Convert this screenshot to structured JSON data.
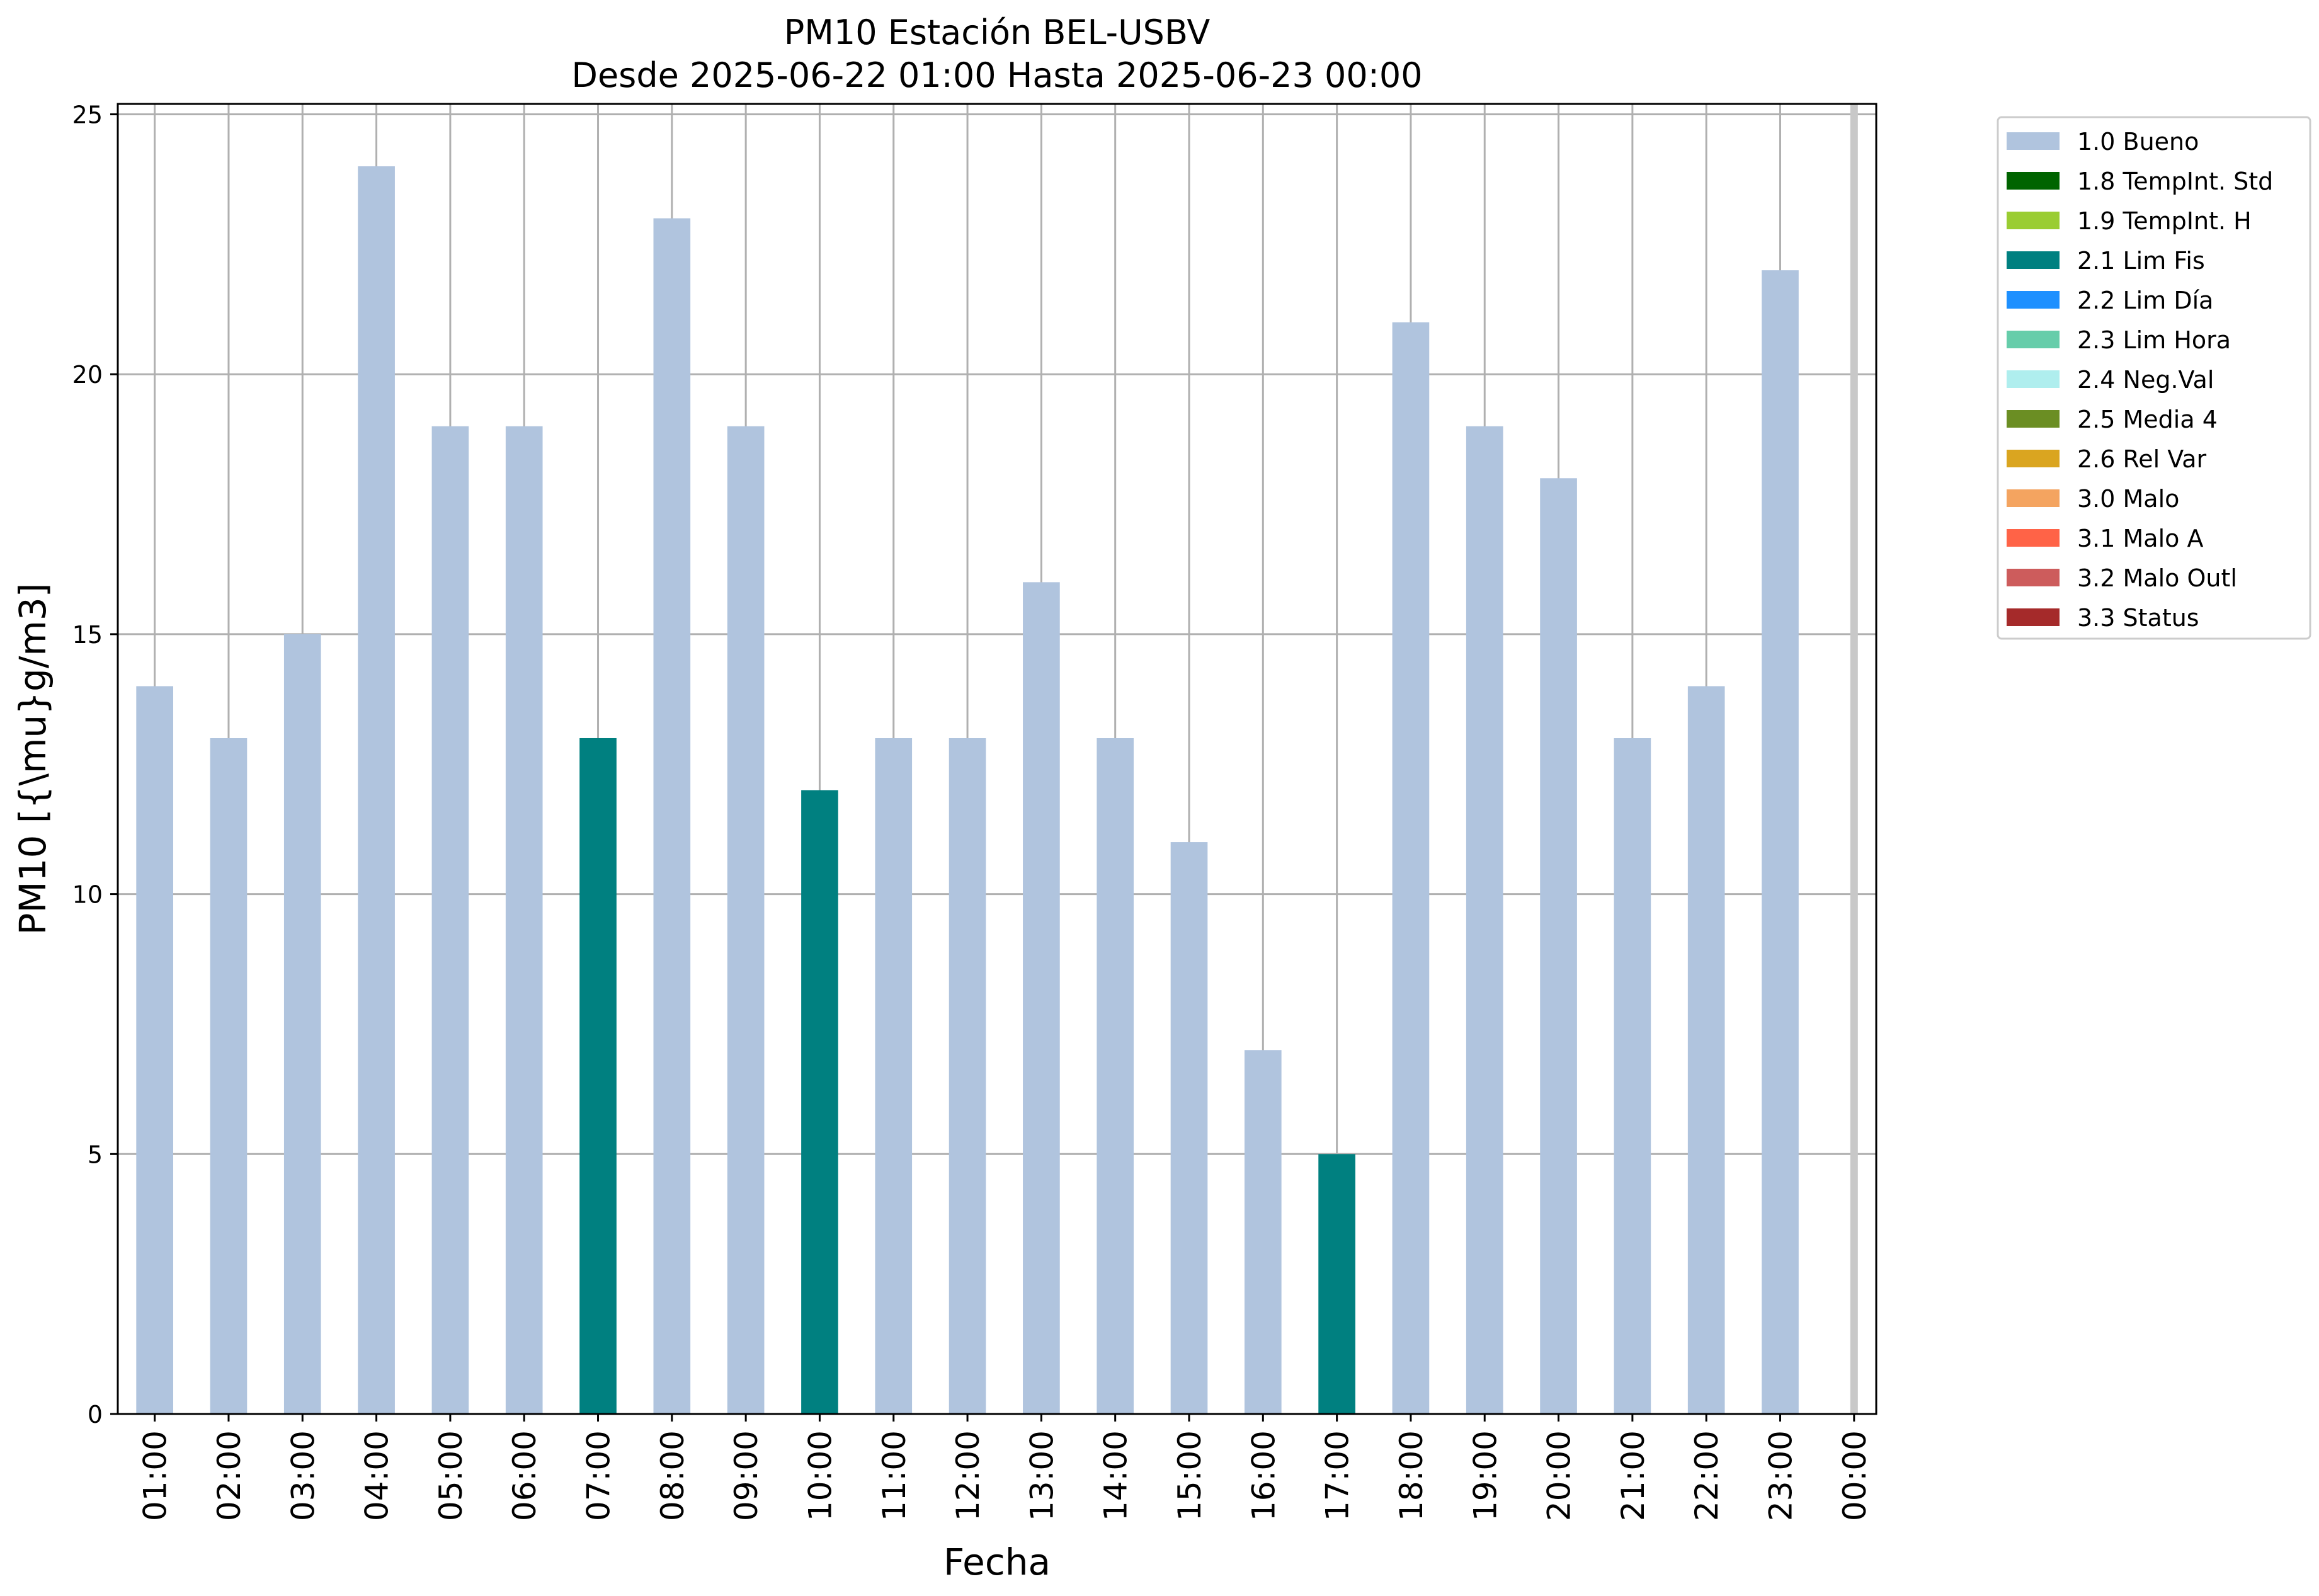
{
  "chart_data": {
    "type": "bar",
    "title": "PM10 Estación BEL-USBV",
    "subtitle": "Desde 2025-06-22 01:00 Hasta 2025-06-23 00:00",
    "xlabel": "Fecha",
    "ylabel": "PM10 [{\\mu}g/m3]",
    "ylim": [
      0,
      25.2
    ],
    "yticks": [
      0,
      5,
      10,
      15,
      20,
      25
    ],
    "grid": true,
    "legend_position": "outside-right",
    "categories": [
      "01:00",
      "02:00",
      "03:00",
      "04:00",
      "05:00",
      "06:00",
      "07:00",
      "08:00",
      "09:00",
      "10:00",
      "11:00",
      "12:00",
      "13:00",
      "14:00",
      "15:00",
      "16:00",
      "17:00",
      "18:00",
      "19:00",
      "20:00",
      "21:00",
      "22:00",
      "23:00",
      "00:00"
    ],
    "values": [
      14,
      13,
      15,
      24,
      19,
      19,
      13,
      23,
      19,
      12,
      13,
      13,
      16,
      13,
      11,
      7,
      5,
      21,
      19,
      18,
      13,
      14,
      22,
      null
    ],
    "flags": [
      "1.0 Bueno",
      "1.0 Bueno",
      "1.0 Bueno",
      "1.0 Bueno",
      "1.0 Bueno",
      "1.0 Bueno",
      "2.1 Lim Fis",
      "1.0 Bueno",
      "1.0 Bueno",
      "2.1 Lim Fis",
      "1.0 Bueno",
      "1.0 Bueno",
      "1.0 Bueno",
      "1.0 Bueno",
      "1.0 Bueno",
      "1.0 Bueno",
      "2.1 Lim Fis",
      "1.0 Bueno",
      "1.0 Bueno",
      "1.0 Bueno",
      "1.0 Bueno",
      "1.0 Bueno",
      "1.0 Bueno",
      null
    ],
    "legend": [
      {
        "name": "1.0 Bueno",
        "color": "#b0c4de"
      },
      {
        "name": "1.8 TempInt. Std",
        "color": "#006400"
      },
      {
        "name": "1.9 TempInt. H",
        "color": "#9acd32"
      },
      {
        "name": "2.1 Lim Fis",
        "color": "#008080"
      },
      {
        "name": "2.2 Lim Día",
        "color": "#1e90ff"
      },
      {
        "name": "2.3 Lim Hora",
        "color": "#66cdaa"
      },
      {
        "name": "2.4 Neg.Val",
        "color": "#afeeee"
      },
      {
        "name": "2.5 Media 4",
        "color": "#6b8e23"
      },
      {
        "name": "2.6 Rel Var",
        "color": "#daa520"
      },
      {
        "name": "3.0 Malo",
        "color": "#f4a460"
      },
      {
        "name": "3.1 Malo A",
        "color": "#ff6347"
      },
      {
        "name": "3.2 Malo Outl",
        "color": "#cd5c5c"
      },
      {
        "name": "3.3 Status",
        "color": "#a52a2a"
      }
    ]
  }
}
